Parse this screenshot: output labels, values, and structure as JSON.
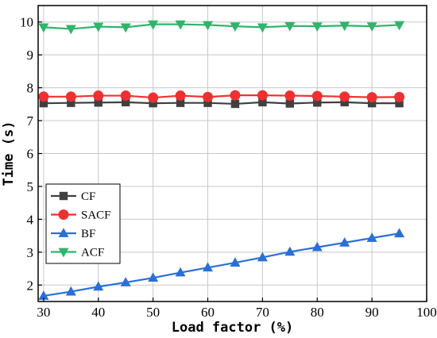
{
  "chart_data": {
    "type": "line",
    "xlabel": "Load factor (%)",
    "ylabel": "Time (s)",
    "xlim": [
      29,
      100
    ],
    "ylim": [
      1.5,
      10.5
    ],
    "x_ticks": [
      30,
      40,
      50,
      60,
      70,
      80,
      90,
      100
    ],
    "y_ticks": [
      2,
      3,
      4,
      5,
      6,
      7,
      8,
      9,
      10
    ],
    "grid": true,
    "legend_position": "bottom-left",
    "x": [
      30,
      35,
      40,
      45,
      50,
      55,
      60,
      65,
      70,
      75,
      80,
      85,
      90,
      95
    ],
    "series": [
      {
        "name": "CF",
        "color": "#404040",
        "marker": "square",
        "values": [
          7.53,
          7.54,
          7.55,
          7.56,
          7.53,
          7.54,
          7.54,
          7.51,
          7.56,
          7.52,
          7.55,
          7.56,
          7.53,
          7.53
        ]
      },
      {
        "name": "SACF",
        "color": "#f03030",
        "marker": "circle",
        "values": [
          7.73,
          7.73,
          7.76,
          7.76,
          7.7,
          7.76,
          7.72,
          7.77,
          7.77,
          7.76,
          7.75,
          7.73,
          7.71,
          7.72
        ]
      },
      {
        "name": "BF",
        "color": "#2a6fd6",
        "marker": "triangle-up",
        "values": [
          1.67,
          1.8,
          1.95,
          2.08,
          2.22,
          2.38,
          2.53,
          2.68,
          2.84,
          3.01,
          3.15,
          3.29,
          3.43,
          3.57
        ]
      },
      {
        "name": "ACF",
        "color": "#2fb56a",
        "marker": "triangle-down",
        "values": [
          9.84,
          9.79,
          9.86,
          9.84,
          9.93,
          9.93,
          9.91,
          9.87,
          9.84,
          9.88,
          9.87,
          9.89,
          9.87,
          9.91
        ]
      }
    ]
  }
}
